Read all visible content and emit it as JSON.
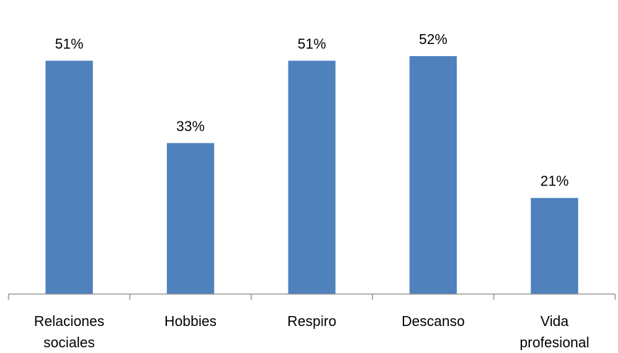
{
  "chart_data": {
    "type": "bar",
    "categories": [
      [
        "Relaciones",
        "sociales"
      ],
      [
        "Hobbies"
      ],
      [
        "Respiro"
      ],
      [
        "Descanso"
      ],
      [
        "Vida",
        "profesional"
      ]
    ],
    "values": [
      51,
      33,
      51,
      52,
      21
    ],
    "data_labels": [
      "51%",
      "33%",
      "51%",
      "52%",
      "21%"
    ],
    "ylim": [
      0,
      60
    ],
    "grid": false,
    "legend": "none",
    "bar_color": "#4f81bd"
  }
}
